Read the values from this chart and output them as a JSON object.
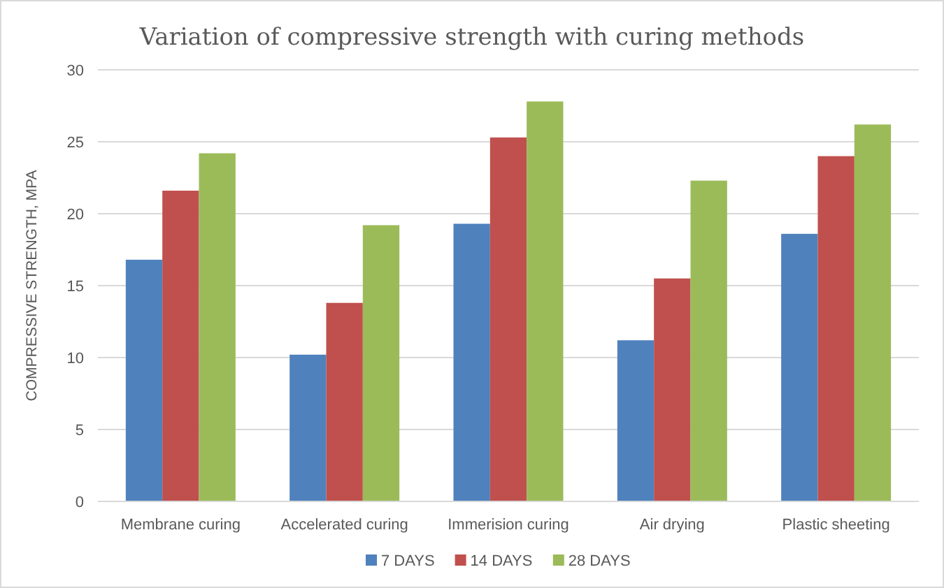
{
  "chart_data": {
    "type": "bar",
    "title": "Variation of compressive strength with curing methods",
    "ylabel": "COMPRESSIVE STRENGTH, MPA",
    "categories": [
      "Membrane curing",
      "Accelerated curing",
      "Immerision curing",
      "Air drying",
      "Plastic sheeting"
    ],
    "series": [
      {
        "name": "7 DAYS",
        "color": "#4f81bd",
        "values": [
          16.8,
          10.2,
          19.3,
          11.2,
          18.6
        ]
      },
      {
        "name": "14 DAYS",
        "color": "#c0504d",
        "values": [
          21.6,
          13.8,
          25.3,
          15.5,
          24.0
        ]
      },
      {
        "name": "28 DAYS",
        "color": "#9bbb59",
        "values": [
          24.2,
          19.2,
          27.8,
          22.3,
          26.2
        ]
      }
    ],
    "ylim": [
      0,
      30
    ],
    "yticks": [
      0,
      5,
      10,
      15,
      20,
      25,
      30
    ],
    "grid": "y",
    "legend": "bottom"
  }
}
